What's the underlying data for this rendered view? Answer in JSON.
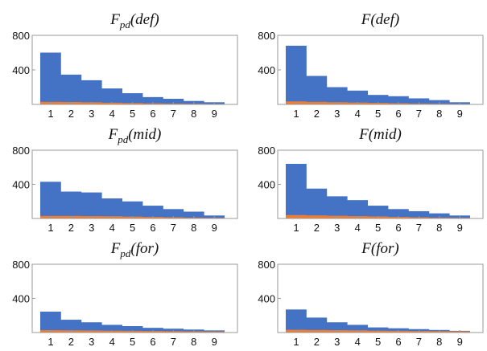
{
  "colors": {
    "main_series": "#4472C4",
    "secondary_series": "#ED7D31"
  },
  "chart_data": [
    {
      "type": "bar",
      "title": {
        "base": "F",
        "sub": "pd",
        "arg": "(def)"
      },
      "categories": [
        "1",
        "2",
        "3",
        "4",
        "5",
        "6",
        "7",
        "8",
        "9"
      ],
      "series": [
        {
          "values": [
            600,
            345,
            280,
            185,
            130,
            85,
            65,
            40,
            25
          ]
        },
        {
          "values": [
            30,
            28,
            25,
            20,
            16,
            12,
            10,
            8,
            6
          ]
        }
      ],
      "ylim": [
        0,
        800
      ],
      "yticks": [
        400,
        800
      ],
      "legend": "none",
      "grid": false
    },
    {
      "type": "bar",
      "title": {
        "base": "F",
        "sub": "",
        "arg": "(def)"
      },
      "categories": [
        "1",
        "2",
        "3",
        "4",
        "5",
        "6",
        "7",
        "8",
        "9"
      ],
      "series": [
        {
          "values": [
            680,
            330,
            200,
            160,
            110,
            95,
            70,
            50,
            25
          ]
        },
        {
          "values": [
            35,
            30,
            26,
            22,
            18,
            14,
            10,
            8,
            6
          ]
        }
      ],
      "ylim": [
        0,
        800
      ],
      "yticks": [
        400,
        800
      ],
      "legend": "none",
      "grid": false
    },
    {
      "type": "bar",
      "title": {
        "base": "F",
        "sub": "pd",
        "arg": "(mid)"
      },
      "categories": [
        "1",
        "2",
        "3",
        "4",
        "5",
        "6",
        "7",
        "8",
        "9"
      ],
      "series": [
        {
          "values": [
            430,
            315,
            305,
            235,
            200,
            150,
            110,
            80,
            35
          ]
        },
        {
          "values": [
            30,
            30,
            28,
            26,
            22,
            18,
            14,
            10,
            8
          ]
        }
      ],
      "ylim": [
        0,
        800
      ],
      "yticks": [
        400,
        800
      ],
      "legend": "none",
      "grid": false
    },
    {
      "type": "bar",
      "title": {
        "base": "F",
        "sub": "",
        "arg": "(mid)"
      },
      "categories": [
        "1",
        "2",
        "3",
        "4",
        "5",
        "6",
        "7",
        "8",
        "9"
      ],
      "series": [
        {
          "values": [
            640,
            350,
            260,
            215,
            150,
            110,
            85,
            60,
            35
          ]
        },
        {
          "values": [
            40,
            36,
            32,
            28,
            24,
            18,
            14,
            10,
            8
          ]
        }
      ],
      "ylim": [
        0,
        800
      ],
      "yticks": [
        400,
        800
      ],
      "legend": "none",
      "grid": false
    },
    {
      "type": "bar",
      "title": {
        "base": "F",
        "sub": "pd",
        "arg": "(for)"
      },
      "categories": [
        "1",
        "2",
        "3",
        "4",
        "5",
        "6",
        "7",
        "8",
        "9"
      ],
      "series": [
        {
          "values": [
            245,
            150,
            120,
            90,
            75,
            55,
            45,
            35,
            25
          ]
        },
        {
          "values": [
            28,
            26,
            24,
            22,
            20,
            18,
            16,
            14,
            12
          ]
        }
      ],
      "ylim": [
        0,
        800
      ],
      "yticks": [
        400,
        800
      ],
      "legend": "none",
      "grid": false
    },
    {
      "type": "bar",
      "title": {
        "base": "F",
        "sub": "",
        "arg": "(for)"
      },
      "categories": [
        "1",
        "2",
        "3",
        "4",
        "5",
        "6",
        "7",
        "8",
        "9"
      ],
      "series": [
        {
          "values": [
            270,
            175,
            120,
            90,
            60,
            50,
            40,
            30,
            20
          ]
        },
        {
          "values": [
            32,
            30,
            28,
            26,
            22,
            20,
            18,
            16,
            14
          ]
        }
      ],
      "ylim": [
        0,
        800
      ],
      "yticks": [
        400,
        800
      ],
      "legend": "none",
      "grid": false
    }
  ]
}
